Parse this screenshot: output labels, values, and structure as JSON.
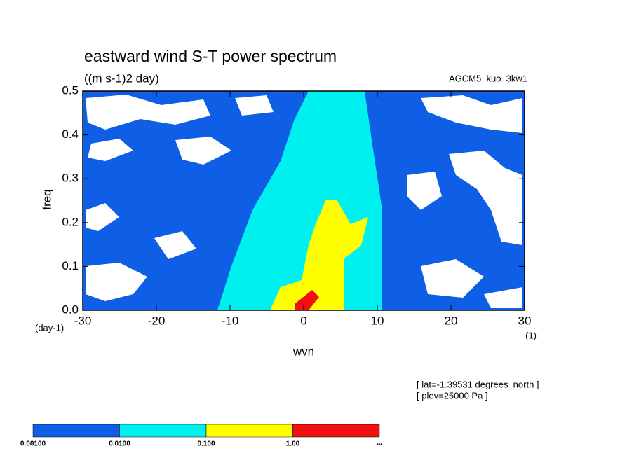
{
  "chart_data": {
    "type": "contour",
    "title": "eastward wind S-T power spectrum",
    "subtitle": "((m s-1)2 day)",
    "run_label": "AGCM5_kuo_3kw1",
    "x_label": "wvn",
    "y_label": "freq",
    "y_unit": "(day-1)",
    "x_unit": "(1)",
    "annotations": [
      "[ lat=-1.39531 degrees_north ]",
      "[ plev=25000 Pa ]"
    ],
    "xlim": [
      -30,
      30
    ],
    "xticks": [
      -30,
      -20,
      -10,
      0,
      10,
      20,
      30
    ],
    "ylim": [
      0,
      0.5
    ],
    "yticks": [
      {
        "value": 0,
        "label": "0.0"
      },
      0.1,
      0.2,
      0.3,
      0.4,
      0.5
    ],
    "colorbar": {
      "labels": [
        "0.00100",
        "0.0100",
        "0.100",
        "1.00",
        "∞"
      ],
      "colors": [
        "#0f5fe6",
        "#00f0f0",
        "#ffff00",
        "#f01010"
      ]
    }
  }
}
